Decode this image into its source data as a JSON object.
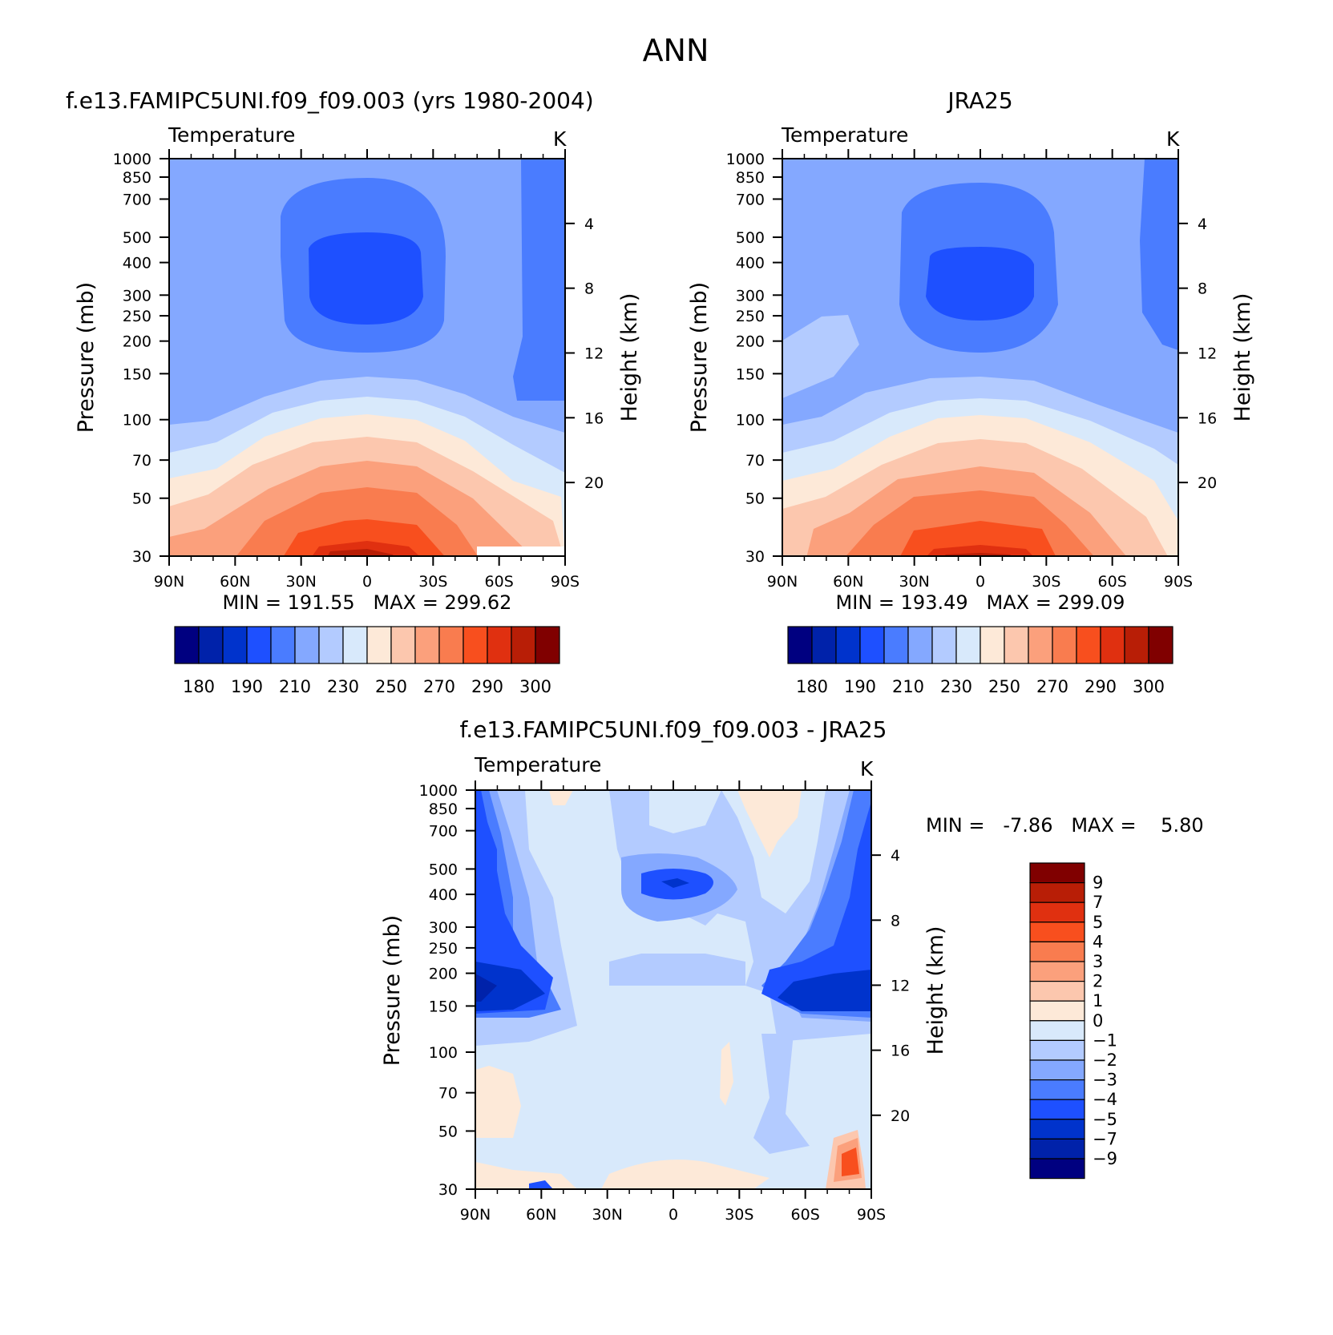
{
  "page_title": "ANN",
  "colors": {
    "temp_scale": [
      "#000080",
      "#0022aa",
      "#0033cc",
      "#1e50ff",
      "#4a7cff",
      "#84a8ff",
      "#b3cbff",
      "#d8e9fb",
      "#fde9d8",
      "#fcc7ae",
      "#fba07c",
      "#f97c4f",
      "#f84f1e",
      "#e03010",
      "#b81e06",
      "#800000"
    ],
    "diff_scale": [
      "#000080",
      "#0022aa",
      "#0033cc",
      "#1e50ff",
      "#4a7cff",
      "#84a8ff",
      "#b3cbff",
      "#d8e9fb",
      "#fde9d8",
      "#fcc7ae",
      "#fba07c",
      "#f97c4f",
      "#f84f1e",
      "#e03010",
      "#b81e06",
      "#800000"
    ]
  },
  "panels": [
    {
      "title": "f.e13.FAMIPC5UNI.f09_f09.003 (yrs 1980-2004)",
      "variable": "Temperature",
      "units": "K",
      "ylabel": "Pressure (mb)",
      "y2label": "Height (km)",
      "stats_text": "MIN = 191.55   MAX = 299.62"
    },
    {
      "title": "JRA25",
      "variable": "Temperature",
      "units": "K",
      "ylabel": "Pressure (mb)",
      "y2label": "Height (km)",
      "stats_text": "MIN = 193.49   MAX = 299.09"
    },
    {
      "title": "f.e13.FAMIPC5UNI.f09_f09.003 - JRA25",
      "variable": "Temperature",
      "units": "K",
      "ylabel": "Pressure (mb)",
      "y2label": "Height (km)",
      "stats_text": "MIN =   -7.86   MAX =    5.80"
    }
  ],
  "chart_data": [
    {
      "type": "contour",
      "title": "f.e13.FAMIPC5UNI.f09_f09.003 (yrs 1980-2004)",
      "subtitle": "Temperature",
      "units": "K",
      "xlabel": "",
      "ylabel": "Pressure (mb)",
      "y2label": "Height (km)",
      "x_ticks": [
        "90N",
        "60N",
        "30N",
        "0",
        "30S",
        "60S",
        "90S"
      ],
      "y_ticks": [
        30,
        50,
        70,
        100,
        150,
        200,
        250,
        300,
        400,
        500,
        700,
        850,
        1000
      ],
      "y2_ticks": [
        20,
        16,
        12,
        8,
        4
      ],
      "ylim": [
        1000,
        30
      ],
      "min": 191.55,
      "max": 299.62,
      "levels": [
        180,
        185,
        190,
        200,
        210,
        220,
        230,
        240,
        250,
        260,
        270,
        280,
        290,
        295,
        300
      ],
      "colorbar_labels": [
        "180",
        "190",
        "210",
        "230",
        "250",
        "270",
        "290",
        "300"
      ]
    },
    {
      "type": "contour",
      "title": "JRA25",
      "subtitle": "Temperature",
      "units": "K",
      "xlabel": "",
      "ylabel": "Pressure (mb)",
      "y2label": "Height (km)",
      "x_ticks": [
        "90N",
        "60N",
        "30N",
        "0",
        "30S",
        "60S",
        "90S"
      ],
      "y_ticks": [
        30,
        50,
        70,
        100,
        150,
        200,
        250,
        300,
        400,
        500,
        700,
        850,
        1000
      ],
      "y2_ticks": [
        20,
        16,
        12,
        8,
        4
      ],
      "ylim": [
        1000,
        30
      ],
      "min": 193.49,
      "max": 299.09,
      "levels": [
        180,
        185,
        190,
        200,
        210,
        220,
        230,
        240,
        250,
        260,
        270,
        280,
        290,
        295,
        300
      ],
      "colorbar_labels": [
        "180",
        "190",
        "210",
        "230",
        "250",
        "270",
        "290",
        "300"
      ]
    },
    {
      "type": "contour",
      "title": "f.e13.FAMIPC5UNI.f09_f09.003 - JRA25",
      "subtitle": "Temperature",
      "units": "K",
      "xlabel": "",
      "ylabel": "Pressure (mb)",
      "y2label": "Height (km)",
      "x_ticks": [
        "90N",
        "60N",
        "30N",
        "0",
        "30S",
        "60S",
        "90S"
      ],
      "y_ticks": [
        30,
        50,
        70,
        100,
        150,
        200,
        250,
        300,
        400,
        500,
        700,
        850,
        1000
      ],
      "y2_ticks": [
        20,
        16,
        12,
        8,
        4
      ],
      "ylim": [
        1000,
        30
      ],
      "min": -7.86,
      "max": 5.8,
      "levels": [
        -9,
        -7,
        -5,
        -4,
        -3,
        -2,
        -1,
        0,
        1,
        2,
        3,
        4,
        5,
        7,
        9
      ],
      "colorbar_labels": [
        "9",
        "7",
        "5",
        "4",
        "3",
        "2",
        "1",
        "0",
        "−1",
        "−2",
        "−3",
        "−4",
        "−5",
        "−7",
        "−9"
      ]
    }
  ]
}
